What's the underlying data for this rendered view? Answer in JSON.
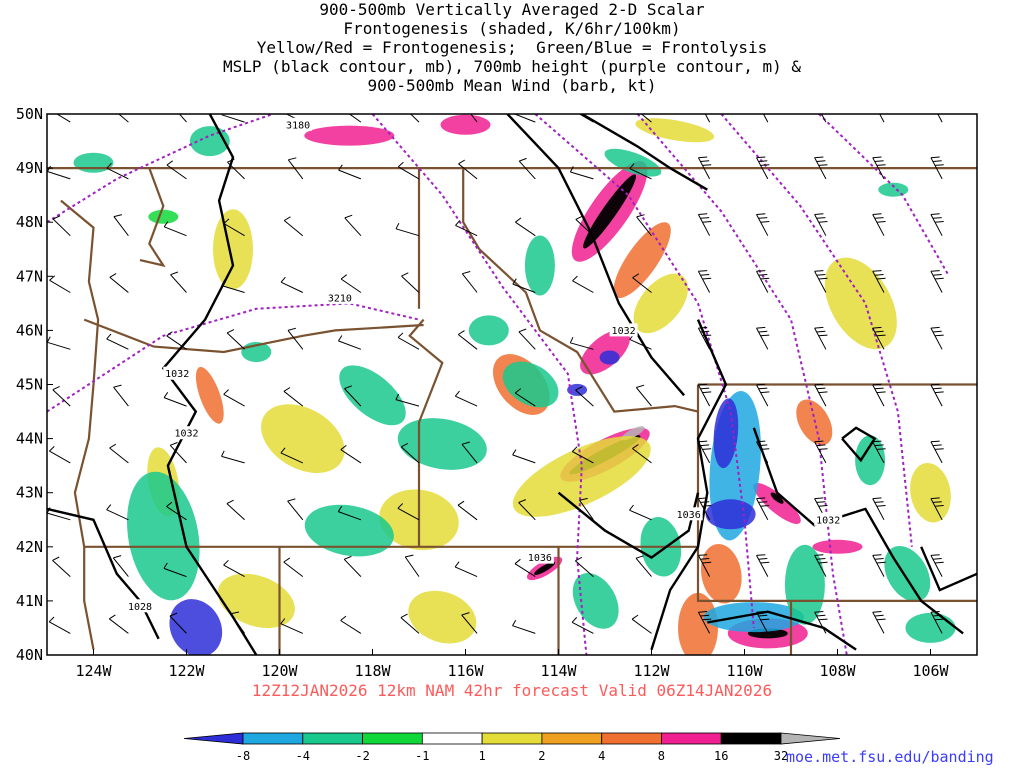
{
  "title_lines": [
    "900-500mb Vertically Averaged 2-D Scalar",
    "Frontogenesis (shaded, K/6hr/100km)",
    "Yellow/Red = Frontogenesis;  Green/Blue = Frontolysis",
    "MSLP (black contour, mb), 700mb height (purple contour, m) &",
    "900-500mb Mean Wind (barb, kt)"
  ],
  "footer": "12Z12JAN2026 12km NAM 42hr forecast Valid 06Z14JAN2026",
  "credit": "moe.met.fsu.edu/banding",
  "map": {
    "lon_range": [
      -125,
      -105
    ],
    "lat_range": [
      40,
      50
    ],
    "lon_ticks": [
      "124W",
      "122W",
      "120W",
      "118W",
      "116W",
      "114W",
      "112W",
      "110W",
      "108W",
      "106W"
    ],
    "lon_tick_values": [
      -124,
      -122,
      -120,
      -118,
      -116,
      -114,
      -112,
      -110,
      -108,
      -106
    ],
    "lat_ticks": [
      "40N",
      "41N",
      "42N",
      "43N",
      "44N",
      "45N",
      "46N",
      "47N",
      "48N",
      "49N",
      "50N"
    ],
    "lat_tick_values": [
      40,
      41,
      42,
      43,
      44,
      45,
      46,
      47,
      48,
      49,
      50
    ],
    "mslp_labels": [
      {
        "text": "1032",
        "lon": -112.6,
        "lat": 46.0
      },
      {
        "text": "1032",
        "lon": -122.2,
        "lat": 45.2
      },
      {
        "text": "1032",
        "lon": -122.0,
        "lat": 44.1
      },
      {
        "text": "1036",
        "lon": -111.2,
        "lat": 42.6
      },
      {
        "text": "1036",
        "lon": -114.4,
        "lat": 41.8
      },
      {
        "text": "1032",
        "lon": -108.2,
        "lat": 42.5
      },
      {
        "text": "1028",
        "lon": -123.0,
        "lat": 40.9
      }
    ],
    "height_labels": [
      {
        "text": "3180",
        "lon": -119.6,
        "lat": 49.8
      },
      {
        "text": "3210",
        "lon": -118.7,
        "lat": 46.6
      }
    ],
    "colors": {
      "mslp": "#000000",
      "height": "#a020c0",
      "borders": "#7a5230",
      "frame": "#000000"
    }
  },
  "colorbar": {
    "labels": [
      "-8",
      "-4",
      "-2",
      "-1",
      "1",
      "2",
      "4",
      "8",
      "16",
      "32"
    ],
    "colors": [
      "#2e2ed8",
      "#1fa8e0",
      "#19c88c",
      "#10d838",
      "#ffffff",
      "#e4dc38",
      "#f0a020",
      "#f07030",
      "#f02090",
      "#000000",
      "#b4b4b4"
    ]
  }
}
